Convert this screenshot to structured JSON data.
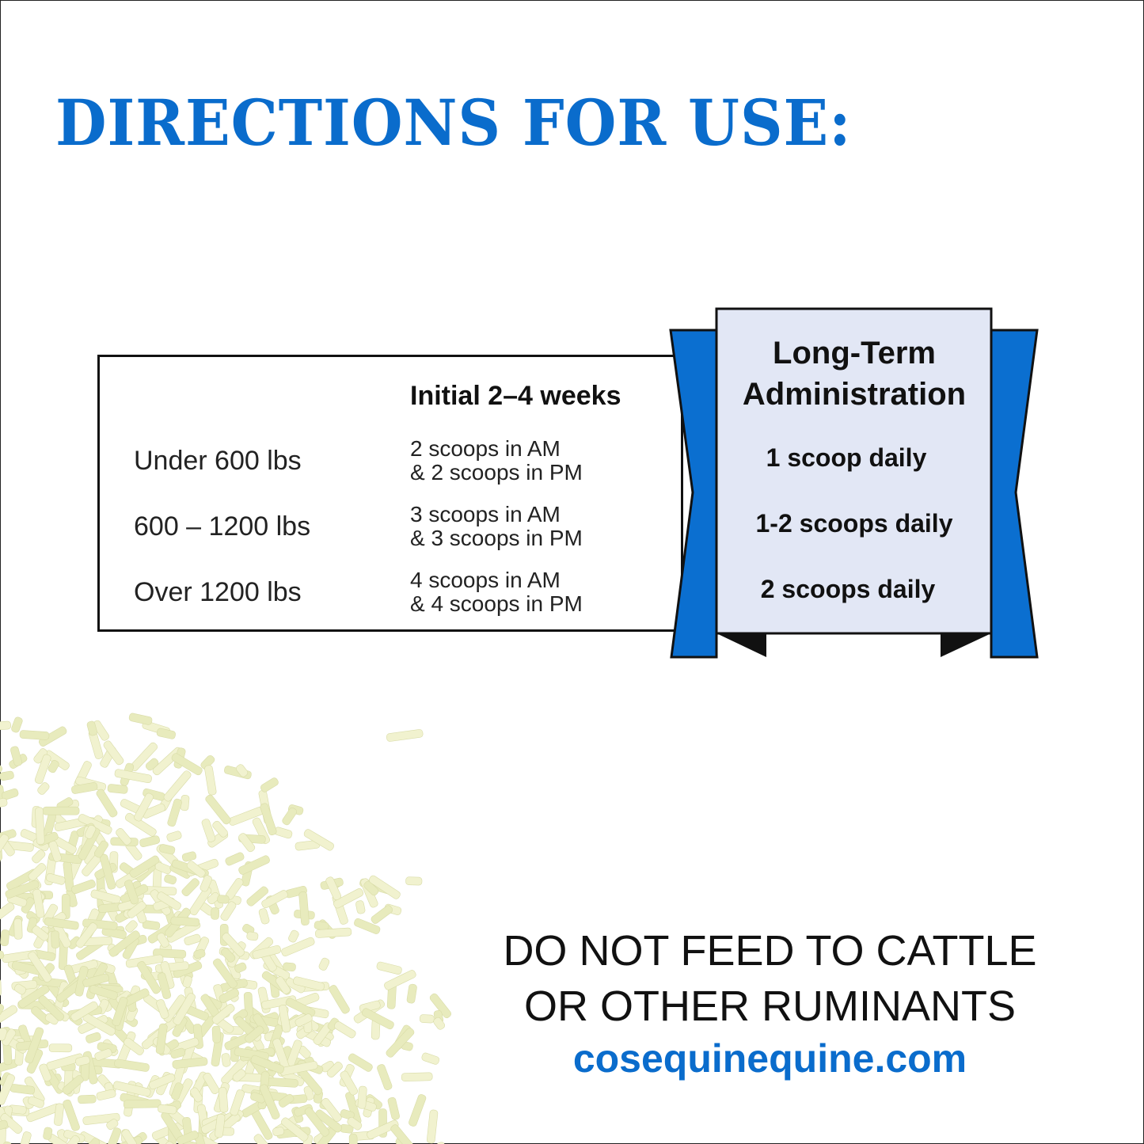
{
  "title": "DIRECTIONS FOR USE:",
  "table": {
    "header": "Initial 2–4 weeks",
    "rows": [
      {
        "weight": "Under 600 lbs",
        "dose_line1": "2 scoops in AM",
        "dose_line2": "& 2 scoops in PM"
      },
      {
        "weight": "600 – 1200 lbs",
        "dose_line1": "3 scoops in AM",
        "dose_line2": "& 3 scoops in PM"
      },
      {
        "weight": "Over 1200 lbs",
        "dose_line1": "4 scoops in AM",
        "dose_line2": "& 4 scoops in PM"
      }
    ]
  },
  "long_term": {
    "title_line1": "Long-Term",
    "title_line2": "Administration",
    "rows": [
      "1 scoop daily",
      "1-2 scoops daily",
      "2 scoops daily"
    ]
  },
  "warning": {
    "line1": "DO NOT FEED TO CATTLE",
    "line2": "OR OTHER  RUMINANTS"
  },
  "website": "cosequinequine.com",
  "colors": {
    "brand_blue": "#0a6ccc",
    "ribbon_blue": "#0b6fd0",
    "panel": "#e2e7f5",
    "pellet": "#f1f2cf"
  }
}
